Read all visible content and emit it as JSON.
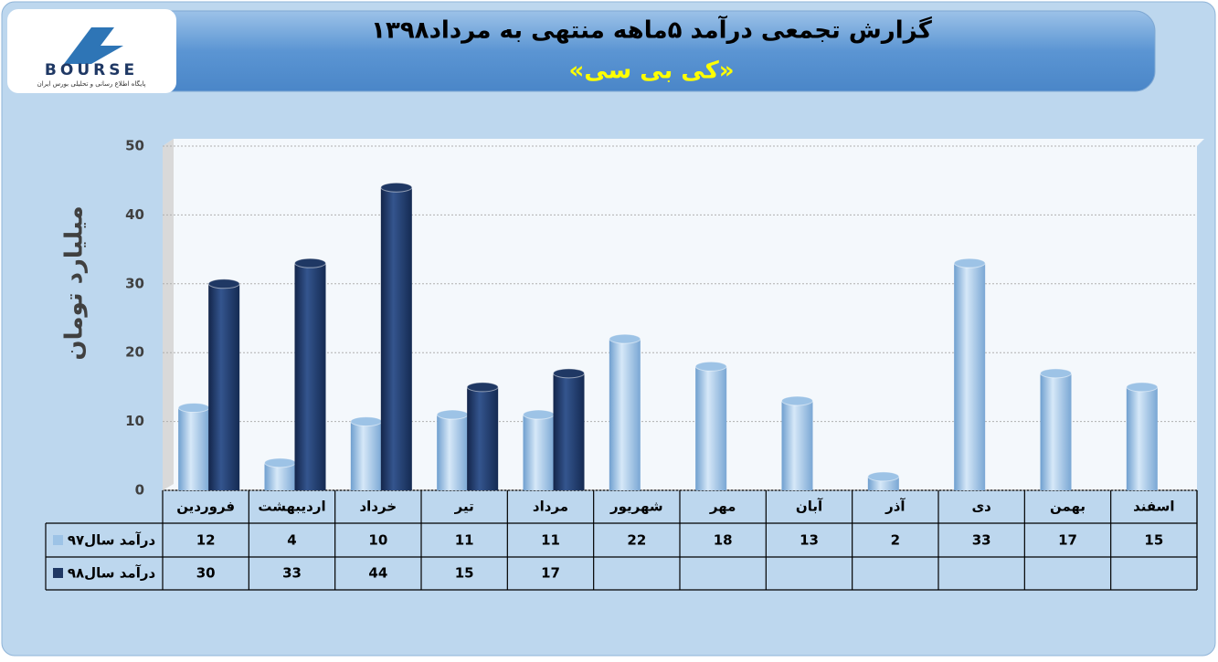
{
  "logo": {
    "name": "BOURSE",
    "tagline": "پایگاه اطلاع رسانی و تحلیلی بورس ایران"
  },
  "chart_data": {
    "type": "bar",
    "title": "گزارش تجمعی درآمد ۵ماهه منتهی به مرداد۱۳۹۸",
    "subtitle": "«کی بی سی»",
    "y_label": "میلیارد تومان",
    "categories": [
      "فروردین",
      "اردیبهشت",
      "خرداد",
      "تیر",
      "مرداد",
      "شهریور",
      "مهر",
      "آبان",
      "آذر",
      "دی",
      "بهمن",
      "اسفند"
    ],
    "series": [
      {
        "name": "درآمد سال۹۷",
        "color": "#9dc3e6",
        "values": [
          12,
          4,
          10,
          11,
          11,
          22,
          18,
          13,
          2,
          33,
          17,
          15
        ]
      },
      {
        "name": "درآمد سال۹۸",
        "color": "#1f3864",
        "values": [
          30,
          33,
          44,
          15,
          17,
          null,
          null,
          null,
          null,
          null,
          null,
          null
        ]
      }
    ],
    "ylim": [
      0,
      50
    ],
    "yticks": [
      0,
      10,
      20,
      30,
      40,
      50
    ],
    "grid": true,
    "legend": "data-table"
  }
}
